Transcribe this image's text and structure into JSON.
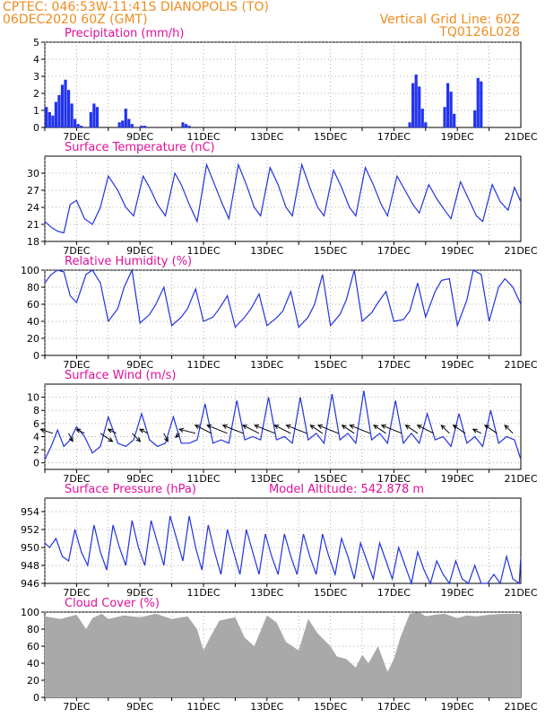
{
  "header": {
    "line1": "CPTEC:   046:53W-11:41S   DIANOPOLIS (TO)",
    "line2": "06DEC2020  60Z (GMT)",
    "grid_note": "Vertical Grid Line: 60Z",
    "model_code": "TQ0126L028"
  },
  "x_axis": {
    "start_day": 6.0,
    "end_day": 21.0,
    "tick_days": [
      7,
      9,
      11,
      13,
      15,
      17,
      19,
      21
    ],
    "tick_labels": [
      "7DEC",
      "9DEC",
      "11DEC",
      "13DEC",
      "15DEC",
      "17DEC",
      "19DEC",
      "21DEC"
    ]
  },
  "colors": {
    "line": "#2233dd",
    "bars": "#2233ee",
    "cloud": "#a9a9a9",
    "title": "#e0109a",
    "header": "#f08c1e"
  },
  "chart_data": [
    {
      "id": "precip",
      "type": "bar",
      "title": "Precipitation (mm/h)",
      "ylim": [
        0,
        5
      ],
      "yticks": [
        0,
        1,
        2,
        3,
        4,
        5
      ],
      "x": [
        6.05,
        6.15,
        6.25,
        6.35,
        6.45,
        6.55,
        6.65,
        6.75,
        6.85,
        6.95,
        7.05,
        7.15,
        7.45,
        7.55,
        7.65,
        8.35,
        8.45,
        8.55,
        8.65,
        8.75,
        9.05,
        9.15,
        10.35,
        10.45,
        10.55,
        17.5,
        17.6,
        17.7,
        17.8,
        17.9,
        18.0,
        18.6,
        18.7,
        18.8,
        18.9,
        19.55,
        19.65,
        19.75
      ],
      "values": [
        1.2,
        0.9,
        0.7,
        1.5,
        1.9,
        2.5,
        2.8,
        2.2,
        1.4,
        0.5,
        0.2,
        0.1,
        0.9,
        1.4,
        1.2,
        0.3,
        0.4,
        1.1,
        0.5,
        0.2,
        0.1,
        0.1,
        0.3,
        0.2,
        0.1,
        0.3,
        2.6,
        3.1,
        2.4,
        1.1,
        0.3,
        1.2,
        2.6,
        2.1,
        0.8,
        1.0,
        2.9,
        2.7
      ]
    },
    {
      "id": "temp",
      "type": "line",
      "title": "Surface Temperature (nC)",
      "ylim": [
        18,
        33
      ],
      "yticks": [
        18,
        21,
        24,
        27,
        30
      ],
      "x": [
        6.0,
        6.2,
        6.4,
        6.6,
        6.8,
        7.0,
        7.25,
        7.5,
        7.75,
        8.0,
        8.3,
        8.55,
        8.8,
        9.1,
        9.3,
        9.55,
        9.8,
        10.1,
        10.3,
        10.55,
        10.8,
        11.1,
        11.35,
        11.6,
        11.8,
        12.1,
        12.35,
        12.6,
        12.8,
        13.1,
        13.35,
        13.6,
        13.8,
        14.1,
        14.35,
        14.6,
        14.8,
        15.1,
        15.35,
        15.6,
        15.8,
        16.1,
        16.35,
        16.6,
        16.8,
        17.1,
        17.35,
        17.6,
        17.8,
        18.1,
        18.35,
        18.6,
        18.8,
        19.1,
        19.35,
        19.6,
        19.8,
        20.1,
        20.35,
        20.6,
        20.8,
        21.0
      ],
      "values": [
        21.5,
        20.5,
        19.8,
        19.5,
        24.5,
        25.2,
        22.0,
        21.0,
        24.0,
        29.5,
        27.0,
        24.0,
        22.5,
        29.5,
        27.5,
        24.5,
        22.5,
        30.0,
        28.0,
        24.5,
        21.5,
        31.5,
        28.0,
        24.5,
        22.0,
        31.5,
        28.0,
        24.0,
        22.5,
        31.0,
        28.0,
        24.0,
        22.5,
        31.5,
        27.5,
        24.0,
        22.5,
        30.5,
        27.5,
        24.0,
        22.5,
        31.0,
        28.0,
        24.5,
        22.5,
        29.5,
        27.0,
        24.5,
        23.0,
        28.0,
        25.5,
        23.5,
        22.0,
        28.5,
        25.5,
        22.5,
        21.5,
        28.0,
        25.0,
        23.5,
        27.5,
        25.0
      ]
    },
    {
      "id": "rh",
      "type": "line",
      "title": "Relative Humidity (%)",
      "ylim": [
        0,
        100
      ],
      "yticks": [
        0,
        20,
        40,
        60,
        80,
        100
      ],
      "x": [
        6.0,
        6.2,
        6.4,
        6.6,
        6.8,
        7.0,
        7.3,
        7.5,
        7.75,
        8.0,
        8.3,
        8.5,
        8.75,
        9.0,
        9.3,
        9.5,
        9.75,
        10.0,
        10.3,
        10.5,
        10.75,
        11.0,
        11.3,
        11.5,
        11.75,
        12.0,
        12.3,
        12.5,
        12.75,
        13.0,
        13.3,
        13.5,
        13.75,
        14.0,
        14.3,
        14.5,
        14.75,
        15.0,
        15.3,
        15.5,
        15.75,
        16.0,
        16.3,
        16.5,
        16.75,
        17.0,
        17.3,
        17.5,
        17.75,
        18.0,
        18.3,
        18.5,
        18.75,
        19.0,
        19.3,
        19.5,
        19.75,
        20.0,
        20.3,
        20.5,
        20.75,
        21.0
      ],
      "values": [
        85,
        95,
        100,
        98,
        70,
        62,
        95,
        100,
        85,
        40,
        55,
        80,
        100,
        38,
        48,
        60,
        80,
        35,
        45,
        55,
        78,
        40,
        45,
        55,
        70,
        33,
        45,
        55,
        72,
        35,
        44,
        52,
        75,
        33,
        45,
        60,
        95,
        35,
        48,
        65,
        100,
        40,
        50,
        62,
        75,
        40,
        42,
        52,
        85,
        45,
        75,
        88,
        90,
        35,
        65,
        100,
        95,
        40,
        80,
        90,
        80,
        60
      ]
    },
    {
      "id": "wind",
      "type": "line",
      "title": "Surface Wind (m/s)",
      "ylim": [
        -1,
        12
      ],
      "yticks": [
        0,
        2,
        4,
        6,
        8,
        10
      ],
      "x": [
        6.0,
        6.2,
        6.4,
        6.6,
        6.8,
        7.0,
        7.25,
        7.5,
        7.75,
        8.0,
        8.3,
        8.55,
        8.8,
        9.05,
        9.3,
        9.55,
        9.8,
        10.05,
        10.3,
        10.55,
        10.8,
        11.05,
        11.3,
        11.55,
        11.8,
        12.05,
        12.3,
        12.55,
        12.8,
        13.05,
        13.3,
        13.55,
        13.8,
        14.05,
        14.3,
        14.55,
        14.8,
        15.05,
        15.3,
        15.55,
        15.8,
        16.05,
        16.3,
        16.55,
        16.8,
        17.05,
        17.3,
        17.55,
        17.8,
        18.05,
        18.3,
        18.55,
        18.8,
        19.05,
        19.3,
        19.55,
        19.8,
        20.05,
        20.3,
        20.55,
        20.8,
        21.0
      ],
      "values": [
        0.5,
        2.5,
        5.0,
        2.5,
        3.5,
        5.5,
        4.0,
        1.5,
        2.5,
        7.0,
        3.0,
        2.5,
        3.5,
        7.5,
        3.5,
        2.5,
        3.0,
        7.0,
        3.0,
        3.0,
        3.5,
        9.0,
        3.0,
        3.5,
        3.0,
        9.5,
        3.5,
        4.0,
        3.5,
        10.0,
        3.5,
        4.0,
        3.0,
        10.0,
        3.5,
        4.5,
        3.0,
        10.5,
        3.5,
        4.5,
        3.0,
        11.0,
        3.5,
        4.5,
        3.0,
        9.5,
        3.0,
        4.5,
        3.0,
        7.5,
        3.5,
        4.0,
        2.5,
        7.5,
        3.0,
        4.0,
        2.5,
        8.0,
        3.0,
        4.0,
        3.5,
        0.5
      ]
    },
    {
      "id": "pres",
      "type": "line",
      "title": "Surface Pressure (hPa)",
      "annotation": "Model Altitude: 542.878 m",
      "ylim": [
        946,
        955.5
      ],
      "yticks": [
        946,
        948,
        950,
        952,
        954
      ],
      "x": [
        6.0,
        6.15,
        6.35,
        6.55,
        6.75,
        6.95,
        7.15,
        7.35,
        7.55,
        7.75,
        7.95,
        8.15,
        8.35,
        8.55,
        8.75,
        8.95,
        9.15,
        9.35,
        9.55,
        9.75,
        9.95,
        10.15,
        10.35,
        10.55,
        10.75,
        10.95,
        11.15,
        11.35,
        11.55,
        11.75,
        11.95,
        12.15,
        12.35,
        12.55,
        12.75,
        12.95,
        13.15,
        13.35,
        13.55,
        13.75,
        13.95,
        14.15,
        14.35,
        14.55,
        14.75,
        14.95,
        15.15,
        15.35,
        15.55,
        15.75,
        15.95,
        16.15,
        16.35,
        16.55,
        16.75,
        16.95,
        17.15,
        17.35,
        17.55,
        17.75,
        17.95,
        18.15,
        18.35,
        18.55,
        18.75,
        18.95,
        19.15,
        19.35,
        19.55,
        19.75,
        19.95,
        20.15,
        20.35,
        20.55,
        20.75,
        20.95,
        21.0
      ],
      "values": [
        950.5,
        950.0,
        951.0,
        949.0,
        948.5,
        952.0,
        949.5,
        948.0,
        952.5,
        949.5,
        947.5,
        952.5,
        950.0,
        948.0,
        953.0,
        950.0,
        948.0,
        953.0,
        950.5,
        948.0,
        953.5,
        951.0,
        948.5,
        953.5,
        950.0,
        947.5,
        952.5,
        949.5,
        947.0,
        952.0,
        949.5,
        947.0,
        952.0,
        949.5,
        947.0,
        951.5,
        949.0,
        947.0,
        951.5,
        949.0,
        947.0,
        951.5,
        949.0,
        947.0,
        951.5,
        949.0,
        947.0,
        951.0,
        949.0,
        946.5,
        950.5,
        948.5,
        946.5,
        950.5,
        948.5,
        946.5,
        950.0,
        948.0,
        946.0,
        949.5,
        947.5,
        946.0,
        948.5,
        947.0,
        946.0,
        948.5,
        946.5,
        946.0,
        948.0,
        946.0,
        946.0,
        947.0,
        946.0,
        949.0,
        946.5,
        946.0,
        949.0
      ]
    },
    {
      "id": "cloud",
      "type": "area",
      "title": "Cloud Cover (%)",
      "ylim": [
        0,
        100
      ],
      "yticks": [
        0,
        20,
        40,
        60,
        80,
        100
      ],
      "x": [
        6.0,
        6.5,
        7.0,
        7.3,
        7.5,
        7.8,
        8.0,
        8.5,
        9.0,
        9.5,
        10.0,
        10.5,
        10.8,
        11.0,
        11.2,
        11.5,
        12.0,
        12.3,
        12.6,
        13.0,
        13.3,
        13.6,
        14.0,
        14.3,
        14.6,
        15.0,
        15.2,
        15.5,
        15.8,
        16.0,
        16.2,
        16.5,
        16.8,
        17.0,
        17.2,
        17.5,
        17.8,
        18.0,
        18.3,
        18.6,
        19.0,
        19.3,
        19.6,
        20.0,
        20.5,
        21.0
      ],
      "values": [
        95,
        92,
        97,
        80,
        93,
        98,
        92,
        96,
        94,
        98,
        92,
        95,
        80,
        55,
        70,
        90,
        94,
        70,
        60,
        96,
        88,
        65,
        55,
        92,
        75,
        60,
        48,
        45,
        35,
        50,
        40,
        60,
        30,
        45,
        70,
        98,
        100,
        95,
        97,
        98,
        93,
        96,
        95,
        97,
        98,
        98
      ]
    }
  ],
  "wind_barbs": {
    "times": [
      6.25,
      6.75,
      7.25,
      7.75,
      8.25,
      8.75,
      9.25,
      9.75,
      10.25,
      10.75,
      11.25,
      11.75,
      12.25,
      12.75,
      13.25,
      13.75,
      14.25,
      14.75,
      15.25,
      15.75,
      16.25,
      16.75,
      17.25,
      17.75,
      18.25,
      18.75,
      19.25,
      19.75,
      20.25,
      20.75
    ],
    "u": [
      -3,
      1,
      -2,
      3,
      -2,
      2,
      -2,
      1,
      -1,
      -4,
      -4,
      -5,
      -5,
      -4,
      -5,
      -4,
      -5,
      -3,
      -5,
      -3,
      -5,
      -3,
      -5,
      -3,
      -4,
      -2,
      -3,
      -2,
      -3,
      -2
    ],
    "v": [
      1,
      -2,
      1,
      -2,
      1,
      -2,
      1,
      -2,
      -1,
      1,
      2,
      2,
      2,
      2,
      2,
      2,
      2,
      2,
      2,
      2,
      2,
      2,
      2,
      2,
      2,
      2,
      2,
      1,
      2,
      2
    ]
  }
}
